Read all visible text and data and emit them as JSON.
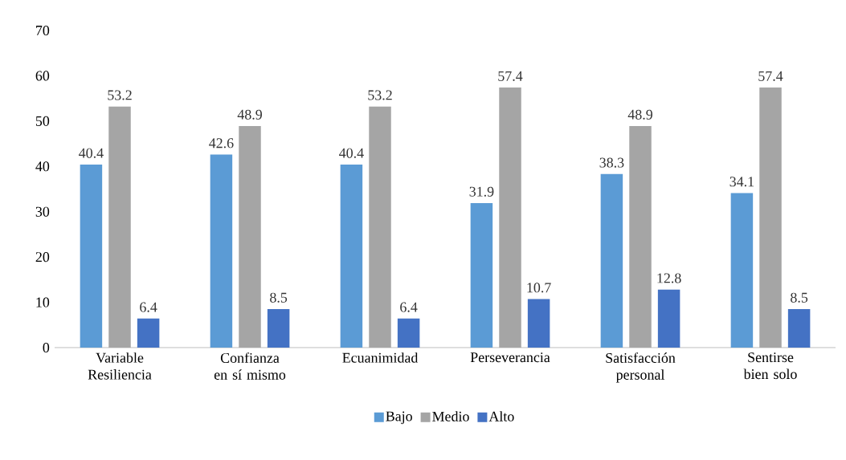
{
  "chart_data": {
    "type": "bar",
    "categories": [
      "Variable Resiliencia",
      "Confianza en sí mismo",
      "Ecuanimidad",
      "Perseverancia",
      "Satisfacción personal",
      "Sentirse bien solo"
    ],
    "series": [
      {
        "name": "Bajo",
        "color": "#5b9bd5",
        "values": [
          40.4,
          42.6,
          40.4,
          31.9,
          38.3,
          34.1
        ]
      },
      {
        "name": "Medio",
        "color": "#a5a5a5",
        "values": [
          53.2,
          48.9,
          53.2,
          57.4,
          48.9,
          57.4
        ]
      },
      {
        "name": "Alto",
        "color": "#4472c4",
        "values": [
          6.4,
          8.5,
          6.4,
          10.7,
          12.8,
          8.5
        ]
      }
    ],
    "ylim": [
      0,
      70
    ],
    "yticks": [
      0,
      10,
      20,
      30,
      40,
      50,
      60,
      70
    ],
    "grid": false,
    "legend": "bottom",
    "data_labels": true
  }
}
